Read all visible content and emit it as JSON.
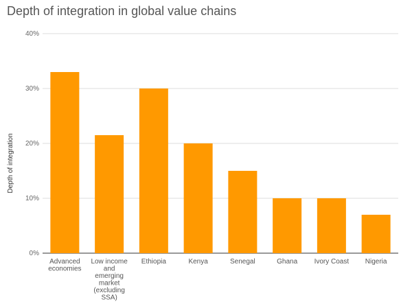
{
  "chart_data": {
    "type": "bar",
    "title": "Depth of integration in global value chains",
    "xlabel": "",
    "ylabel": "Depth of integration",
    "ylim": [
      0,
      40
    ],
    "yticks": [
      {
        "value": 0,
        "label": "0%"
      },
      {
        "value": 10,
        "label": "10%"
      },
      {
        "value": 20,
        "label": "20%"
      },
      {
        "value": 30,
        "label": "30%"
      },
      {
        "value": 40,
        "label": "40%"
      }
    ],
    "categories": [
      "Advanced economies",
      "Low income and emerging market (excluding SSA)",
      "Ethiopia",
      "Kenya",
      "Senegal",
      "Ghana",
      "Ivory Coast",
      "Nigeria"
    ],
    "category_label_lines": [
      [
        "Advanced",
        "economies"
      ],
      [
        "Low income",
        "and",
        "emerging",
        "market",
        "(excluding",
        "SSA)"
      ],
      [
        "Ethiopia"
      ],
      [
        "Kenya"
      ],
      [
        "Senegal"
      ],
      [
        "Ghana"
      ],
      [
        "Ivory Coast"
      ],
      [
        "Nigeria"
      ]
    ],
    "values": [
      33,
      21.5,
      30,
      20,
      15,
      10,
      10,
      7
    ],
    "unit": "%",
    "bar_color": "#ff9900",
    "grid": true,
    "gridline_color": "#dddddd",
    "legend": "none"
  }
}
